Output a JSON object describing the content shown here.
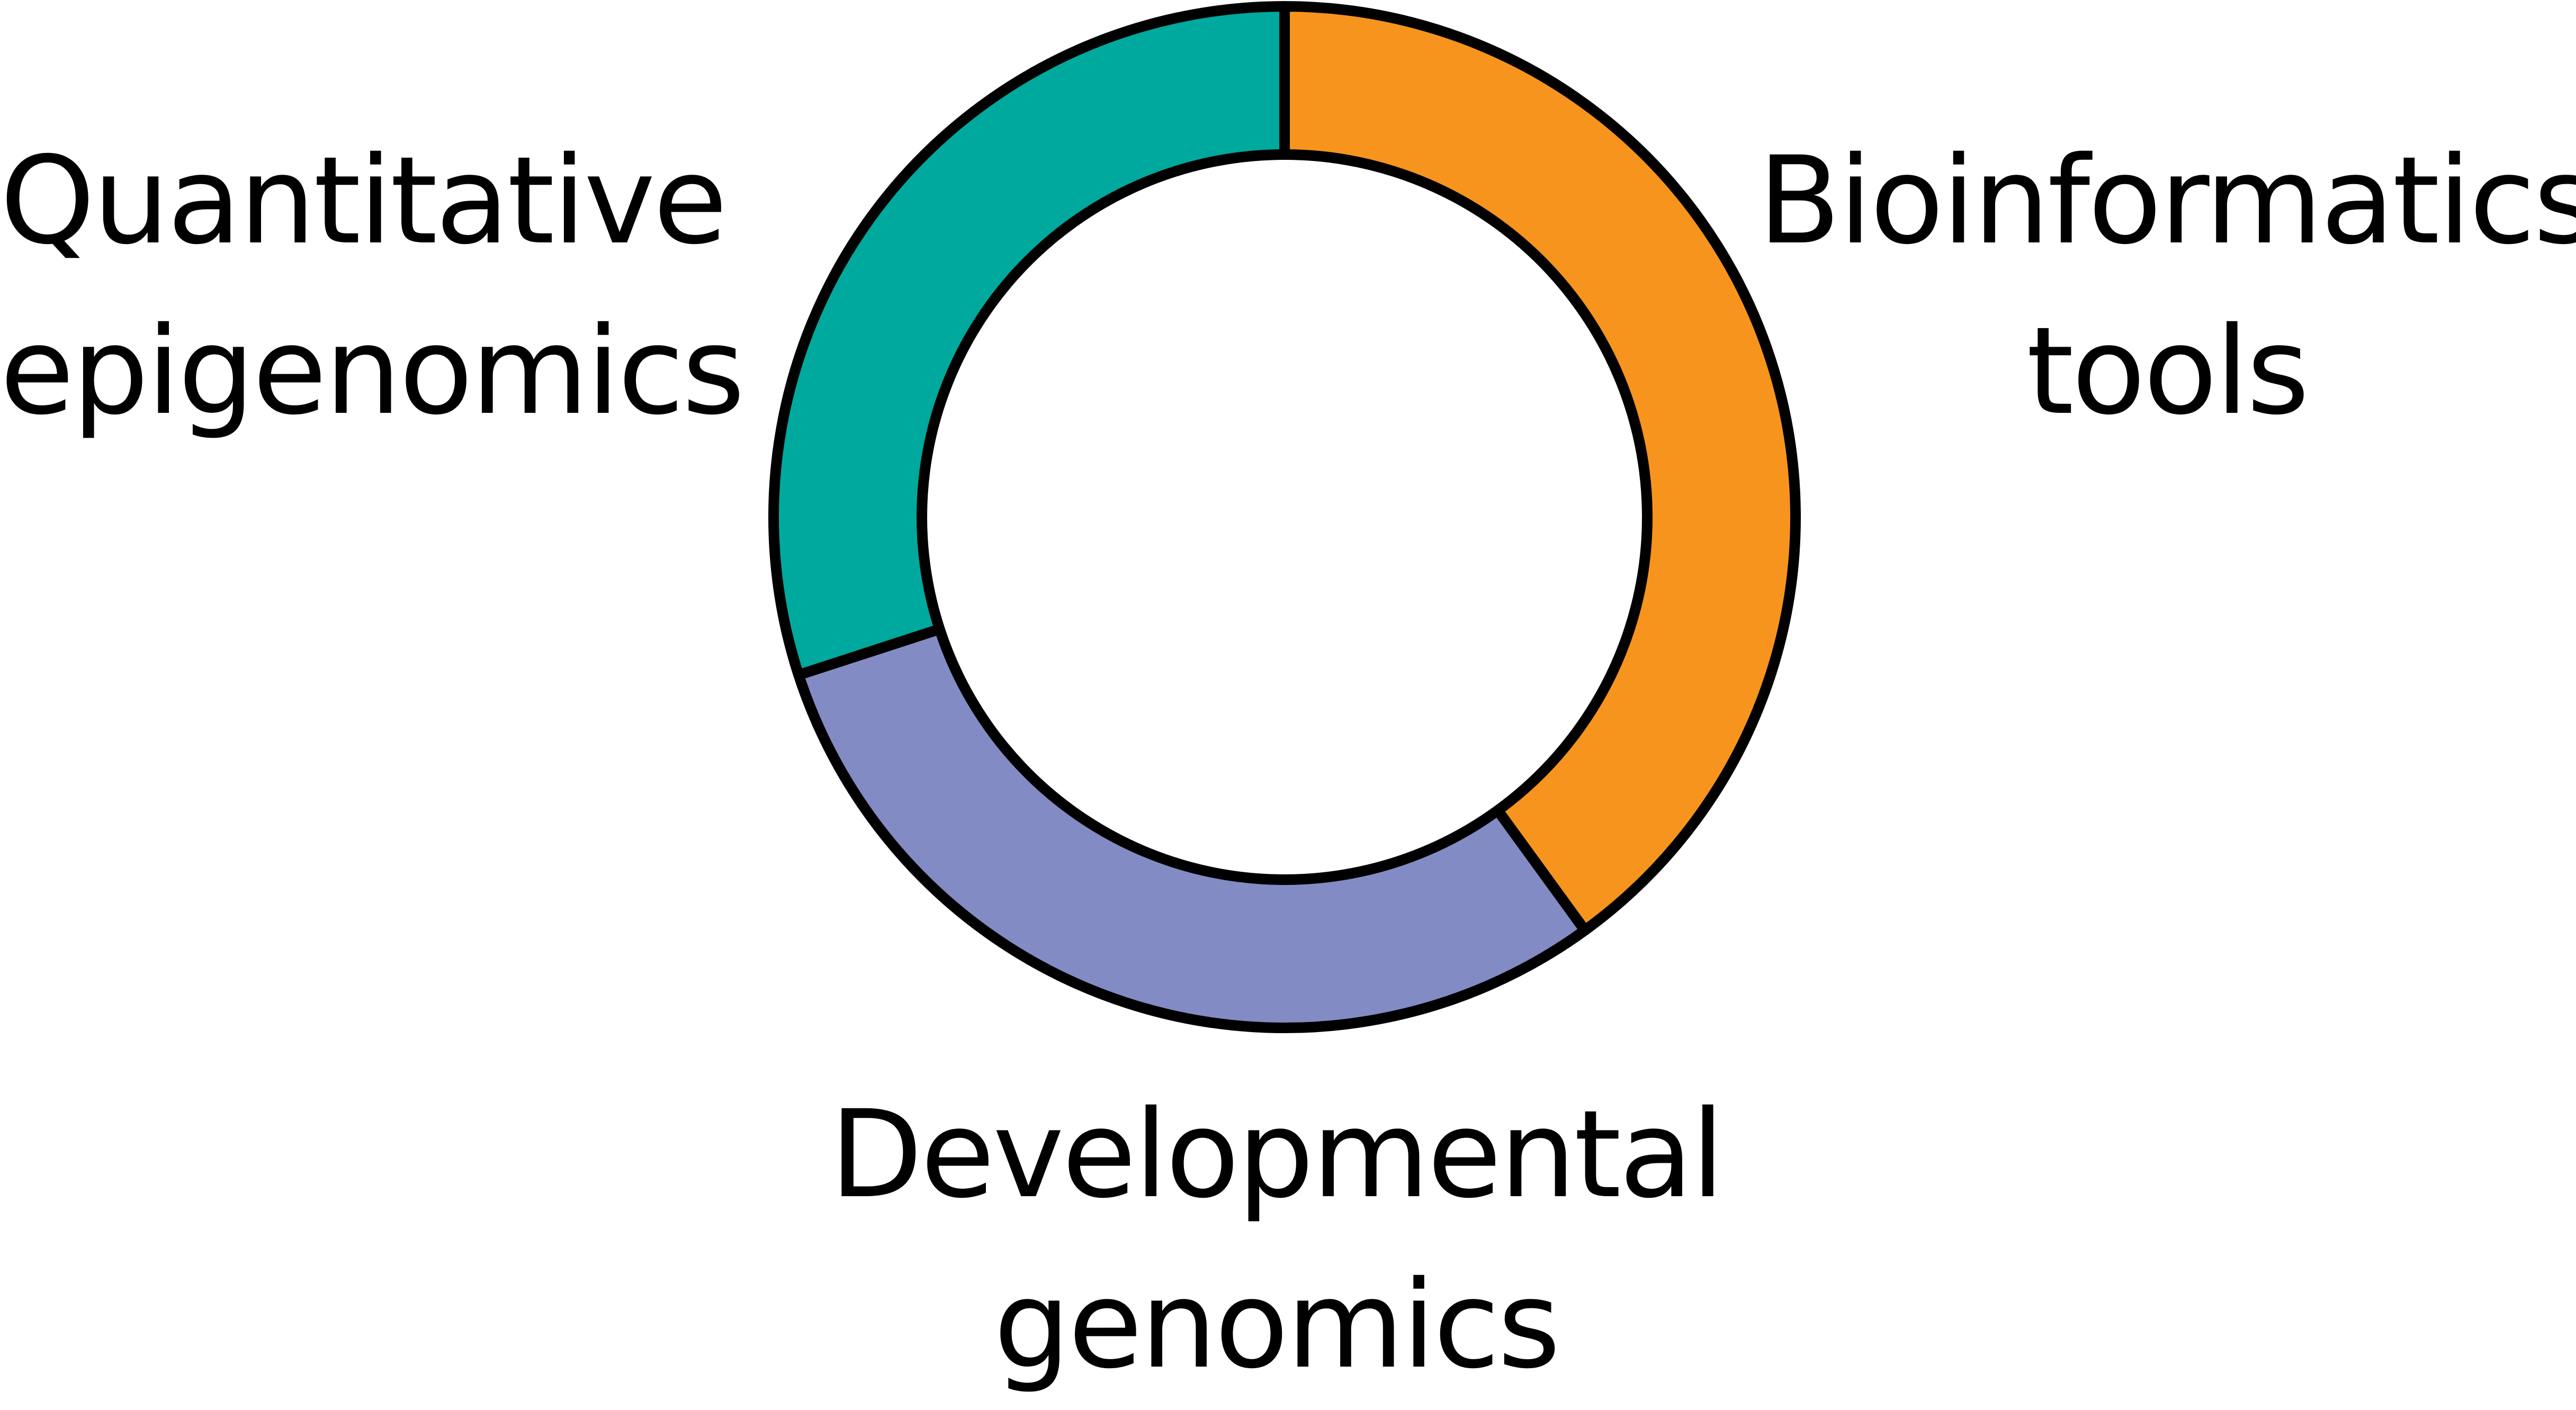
{
  "chart_data": {
    "type": "pie",
    "subtype": "donut",
    "title": "",
    "slices": [
      {
        "label_lines": [
          "Bioinformatics",
          "tools"
        ],
        "value": 40,
        "color": "#F7941D"
      },
      {
        "label_lines": [
          "Developmental",
          "genomics"
        ],
        "value": 30,
        "color": "#838BC4"
      },
      {
        "label_lines": [
          "Quantitative",
          "epigenomics"
        ],
        "value": 30,
        "color": "#00A99D"
      }
    ],
    "start_angle_deg": 0,
    "direction": "clockwise",
    "legend": "none",
    "stroke_color": "#000000"
  }
}
